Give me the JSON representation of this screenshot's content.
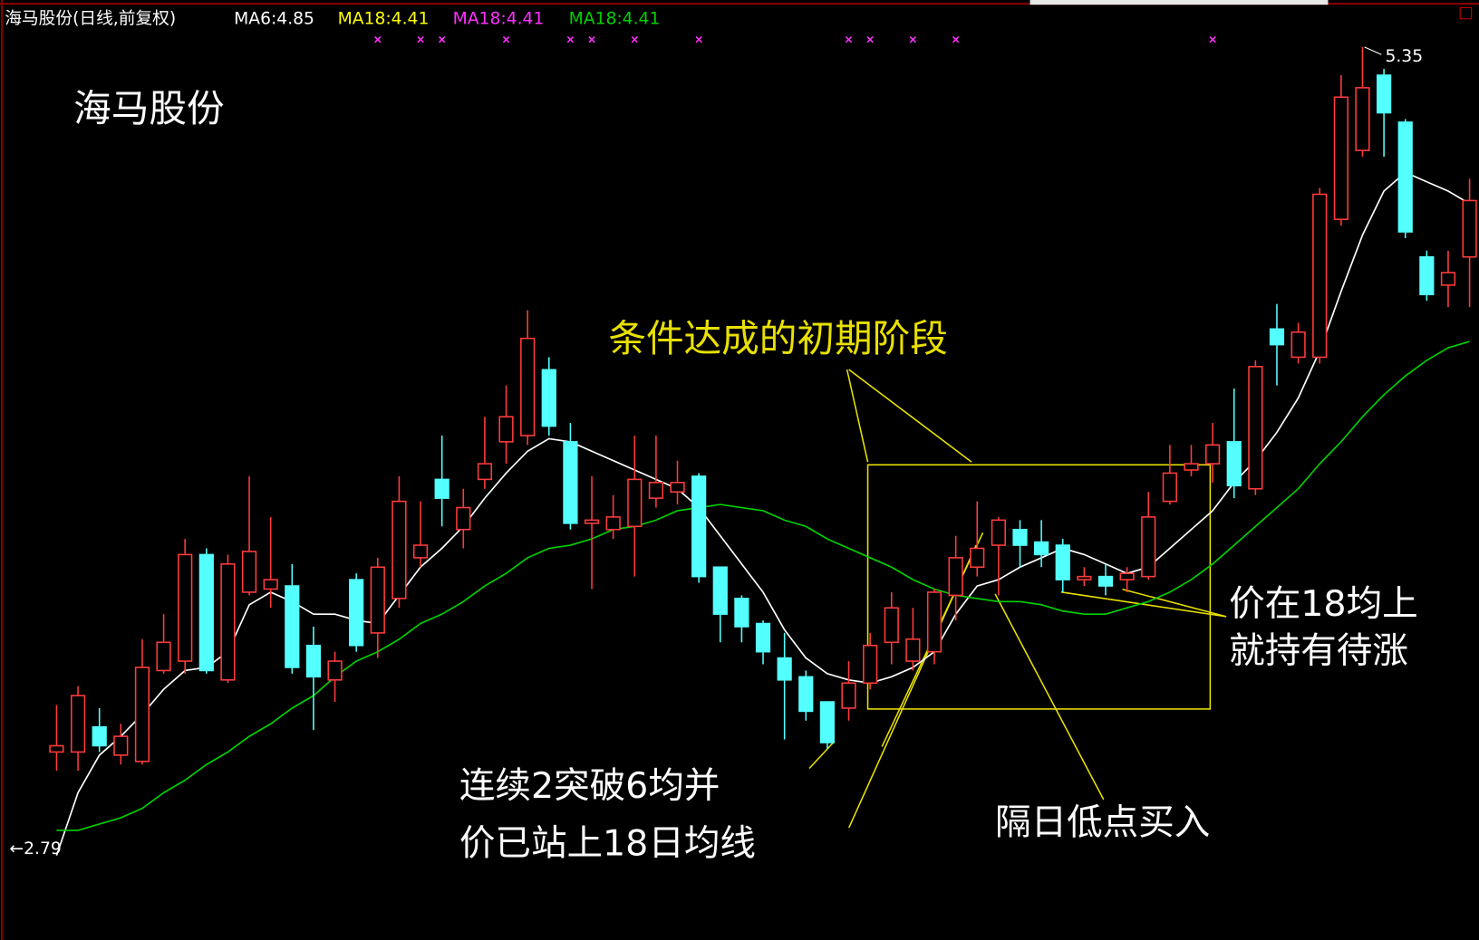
{
  "chart_data": {
    "type": "candlestick",
    "title": "海马股份(日线,前复权)",
    "ylim": [
      2.5,
      5.5
    ],
    "up_color": "#ff3c3c",
    "down_color": "#54ffff",
    "open": [
      3.1,
      3.1,
      3.18,
      3.09,
      3.07,
      3.36,
      3.39,
      3.73,
      3.33,
      3.61,
      3.62,
      3.63,
      3.44,
      3.33,
      3.65,
      3.48,
      3.59,
      3.72,
      3.97,
      3.81,
      3.97,
      4.09,
      4.11,
      4.32,
      4.09,
      3.83,
      3.81,
      3.82,
      3.91,
      3.93,
      3.98,
      3.69,
      3.59,
      3.51,
      3.4,
      3.34,
      3.26,
      3.24,
      3.32,
      3.45,
      3.39,
      3.42,
      3.6,
      3.69,
      3.76,
      3.81,
      3.77,
      3.76,
      3.65,
      3.66,
      3.65,
      3.66,
      3.9,
      4.0,
      4.02,
      4.09,
      3.94,
      4.45,
      4.36,
      4.36,
      4.8,
      5.02,
      5.26,
      5.11,
      4.68,
      4.59,
      4.68
    ],
    "high": [
      3.25,
      3.31,
      3.24,
      3.19,
      3.46,
      3.54,
      3.78,
      3.75,
      3.73,
      3.98,
      3.85,
      3.7,
      3.5,
      3.42,
      3.67,
      3.72,
      3.98,
      3.9,
      4.11,
      3.94,
      4.17,
      4.27,
      4.51,
      4.36,
      4.15,
      3.98,
      3.92,
      4.11,
      4.11,
      4.03,
      3.99,
      3.69,
      3.6,
      3.52,
      3.48,
      3.36,
      3.26,
      3.39,
      3.48,
      3.61,
      3.56,
      3.62,
      3.79,
      3.9,
      3.85,
      3.84,
      3.84,
      3.78,
      3.69,
      3.7,
      3.69,
      3.93,
      4.08,
      4.08,
      4.15,
      4.26,
      4.35,
      4.53,
      4.47,
      4.9,
      5.26,
      5.35,
      5.28,
      5.12,
      4.7,
      4.7,
      4.93
    ],
    "low": [
      3.04,
      3.04,
      3.1,
      3.06,
      3.06,
      3.35,
      3.35,
      3.35,
      3.32,
      3.6,
      3.56,
      3.35,
      3.17,
      3.26,
      3.42,
      3.4,
      3.56,
      3.69,
      3.82,
      3.75,
      3.94,
      4.02,
      4.08,
      4.11,
      3.81,
      3.62,
      3.78,
      3.66,
      3.88,
      3.89,
      3.64,
      3.45,
      3.45,
      3.38,
      3.14,
      3.2,
      3.11,
      3.2,
      3.3,
      3.38,
      3.36,
      3.38,
      3.52,
      3.66,
      3.6,
      3.69,
      3.69,
      3.61,
      3.63,
      3.6,
      3.61,
      3.65,
      3.89,
      3.98,
      3.96,
      3.91,
      3.92,
      4.27,
      4.34,
      4.34,
      4.78,
      5.0,
      5.0,
      4.74,
      4.54,
      4.52,
      4.52
    ],
    "close": [
      3.12,
      3.28,
      3.12,
      3.15,
      3.37,
      3.45,
      3.73,
      3.36,
      3.7,
      3.74,
      3.65,
      3.37,
      3.34,
      3.39,
      3.44,
      3.69,
      3.9,
      3.76,
      3.91,
      3.88,
      4.02,
      4.17,
      4.42,
      4.14,
      3.83,
      3.84,
      3.85,
      3.97,
      3.96,
      3.96,
      3.66,
      3.54,
      3.5,
      3.42,
      3.33,
      3.23,
      3.13,
      3.32,
      3.44,
      3.56,
      3.46,
      3.61,
      3.72,
      3.75,
      3.84,
      3.76,
      3.73,
      3.65,
      3.66,
      3.63,
      3.67,
      3.85,
      3.99,
      4.02,
      4.08,
      3.95,
      4.33,
      4.4,
      4.44,
      4.88,
      5.19,
      5.22,
      5.14,
      4.76,
      4.56,
      4.63,
      4.86
    ],
    "series": [
      {
        "name": "MA6:4.85",
        "color": "#ffffff",
        "values": [
          2.77,
          2.97,
          3.09,
          3.15,
          3.22,
          3.3,
          3.36,
          3.37,
          3.42,
          3.57,
          3.61,
          3.58,
          3.54,
          3.54,
          3.52,
          3.51,
          3.6,
          3.69,
          3.75,
          3.82,
          3.91,
          3.99,
          4.06,
          4.1,
          4.09,
          4.06,
          4.03,
          4.0,
          3.97,
          3.94,
          3.88,
          3.79,
          3.7,
          3.61,
          3.49,
          3.4,
          3.35,
          3.33,
          3.32,
          3.34,
          3.37,
          3.42,
          3.54,
          3.63,
          3.65,
          3.69,
          3.72,
          3.75,
          3.73,
          3.7,
          3.67,
          3.69,
          3.75,
          3.81,
          3.87,
          3.96,
          4.03,
          4.12,
          4.23,
          4.38,
          4.57,
          4.75,
          4.89,
          4.95,
          4.92,
          4.89,
          4.85
        ]
      },
      {
        "name": "MA18:4.41",
        "color": "#00d000",
        "values": [
          2.85,
          2.85,
          2.87,
          2.89,
          2.92,
          2.97,
          3.01,
          3.06,
          3.1,
          3.15,
          3.19,
          3.24,
          3.28,
          3.34,
          3.39,
          3.42,
          3.46,
          3.51,
          3.54,
          3.58,
          3.63,
          3.67,
          3.72,
          3.75,
          3.76,
          3.78,
          3.81,
          3.82,
          3.84,
          3.87,
          3.88,
          3.89,
          3.88,
          3.87,
          3.84,
          3.82,
          3.78,
          3.75,
          3.72,
          3.69,
          3.65,
          3.62,
          3.6,
          3.59,
          3.58,
          3.58,
          3.57,
          3.55,
          3.54,
          3.54,
          3.56,
          3.58,
          3.61,
          3.65,
          3.7,
          3.76,
          3.82,
          3.88,
          3.94,
          4.02,
          4.09,
          4.17,
          4.24,
          4.3,
          4.35,
          4.39,
          4.41
        ]
      }
    ],
    "legend_extra": [
      {
        "text": "MA18:4.41",
        "color": "#ffff00"
      },
      {
        "text": "MA18:4.41",
        "color": "#ff30ff"
      }
    ],
    "signal_days": [
      15,
      17,
      18,
      21,
      24,
      25,
      27,
      30,
      37,
      38,
      40,
      42,
      54
    ],
    "signal_color": "#ff30ff",
    "high_marker": {
      "value": 5.35,
      "label": "5.35"
    },
    "low_marker": {
      "value": 2.79,
      "label": "←2.79"
    },
    "annotations": {
      "stock_name": "海马股份",
      "phase": "条件达成的初期阶段",
      "breakout": [
        "连续2突破6均并",
        "价已站上18日均线"
      ],
      "buy": "隔日低点买入",
      "hold": [
        "价在18均上",
        "就持有待涨"
      ]
    }
  }
}
